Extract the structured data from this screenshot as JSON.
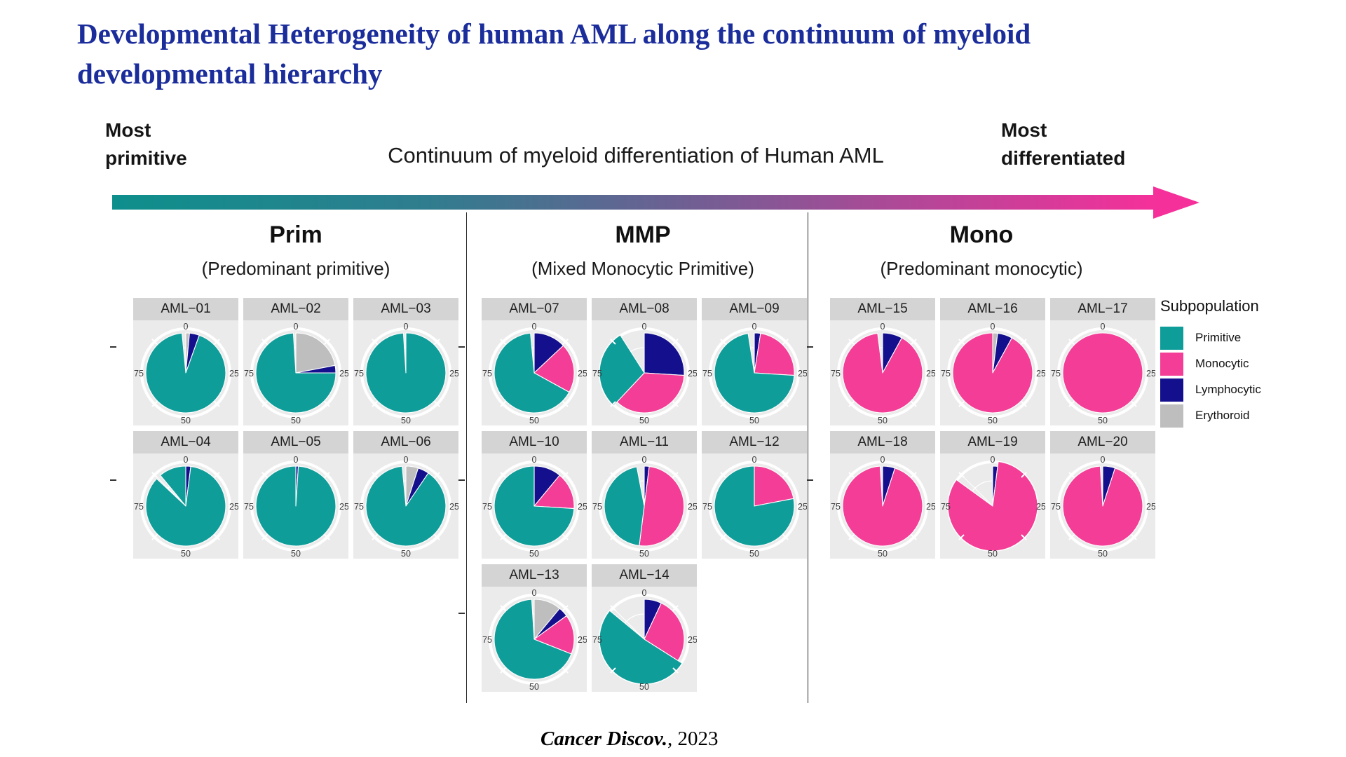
{
  "title": {
    "line1": "Developmental Heterogeneity of human AML along the continuum of myeloid",
    "line2": "developmental hierarchy"
  },
  "axis_labels": {
    "left_line1": "Most",
    "left_line2": "primitive",
    "center": "Continuum of myeloid differentiation of Human AML",
    "right_line1": "Most",
    "right_line2": "differentiated"
  },
  "legend": {
    "title": "Subpopulation",
    "entries": [
      {
        "key": "P",
        "label": "Primitive",
        "color": "#0F9D9A"
      },
      {
        "key": "M",
        "label": "Monocytic",
        "color": "#F43D96"
      },
      {
        "key": "L",
        "label": "Lymphocytic",
        "color": "#140F8C"
      },
      {
        "key": "E",
        "label": "Erythoroid",
        "color": "#BEBEBE"
      }
    ]
  },
  "citation": {
    "journal": "Cancer Discov.",
    "suffix": ", 2023"
  },
  "colors": {
    "title_blue": "#1B2D9B",
    "primitive": "#0F9D9A",
    "monocytic": "#F43D96",
    "lymphocytic": "#140F8C",
    "erythoroid": "#BEBEBE",
    "panel_strip": "#D4D4D4",
    "panel_bg": "#EBEBEB",
    "arrow_start": "#0D8F8C",
    "arrow_end": "#F5309B"
  },
  "chart_data": {
    "type": "pie",
    "unit": "percent of cells",
    "tick_labels": [
      "0",
      "25",
      "50",
      "75"
    ],
    "category_key": {
      "P": "Primitive",
      "M": "Monocytic",
      "L": "Lymphocytic",
      "E": "Erythoroid",
      "X": "empty"
    },
    "groups": [
      {
        "name": "Prim",
        "subtitle": "(Predominant primitive)",
        "rows": [
          [
            "AML-01",
            "AML-02",
            "AML-03"
          ],
          [
            "AML-04",
            "AML-05",
            "AML-06"
          ]
        ]
      },
      {
        "name": "MMP",
        "subtitle": "(Mixed Monocytic Primitive)",
        "rows": [
          [
            "AML-07",
            "AML-08",
            "AML-09"
          ],
          [
            "AML-10",
            "AML-11",
            "AML-12"
          ],
          [
            "AML-13",
            "AML-14"
          ]
        ]
      },
      {
        "name": "Mono",
        "subtitle": "(Predominant monocytic)",
        "rows": [
          [
            "AML-15",
            "AML-16",
            "AML-17"
          ],
          [
            "AML-18",
            "AML-19",
            "AML-20"
          ]
        ]
      }
    ],
    "samples": {
      "AML-01": {
        "label": "AML−01",
        "slices": [
          {
            "c": "E",
            "v": 1.5
          },
          {
            "c": "L",
            "v": 4
          },
          {
            "c": "P",
            "v": 93
          },
          {
            "c": "X",
            "v": 1.5
          }
        ]
      },
      "AML-02": {
        "label": "AML−02",
        "slices": [
          {
            "c": "E",
            "v": 22
          },
          {
            "c": "L",
            "v": 3
          },
          {
            "c": "P",
            "v": 74
          },
          {
            "c": "X",
            "v": 1
          }
        ]
      },
      "AML-03": {
        "label": "AML−03",
        "slices": [
          {
            "c": "P",
            "v": 99
          },
          {
            "c": "X",
            "v": 1
          }
        ]
      },
      "AML-04": {
        "label": "AML−04",
        "slices": [
          {
            "c": "L",
            "v": 2
          },
          {
            "c": "P",
            "v": 85
          },
          {
            "c": "X",
            "v": 2
          },
          {
            "c": "P",
            "v": 11
          }
        ]
      },
      "AML-05": {
        "label": "AML−05",
        "slices": [
          {
            "c": "L",
            "v": 1
          },
          {
            "c": "P",
            "v": 99
          }
        ]
      },
      "AML-06": {
        "label": "AML−06",
        "slices": [
          {
            "c": "E",
            "v": 5
          },
          {
            "c": "L",
            "v": 4.5
          },
          {
            "c": "P",
            "v": 89
          },
          {
            "c": "X",
            "v": 1.5
          }
        ]
      },
      "AML-07": {
        "label": "AML−07",
        "slices": [
          {
            "c": "L",
            "v": 13
          },
          {
            "c": "M",
            "v": 20
          },
          {
            "c": "P",
            "v": 65.5
          },
          {
            "c": "X",
            "v": 1.5
          }
        ]
      },
      "AML-08": {
        "label": "AML−08",
        "slices": [
          {
            "c": "L",
            "v": 26
          },
          {
            "c": "M",
            "v": 36
          },
          {
            "c": "P",
            "v": 29,
            "of": true
          },
          {
            "c": "X",
            "v": 9
          }
        ]
      },
      "AML-09": {
        "label": "AML−09",
        "slices": [
          {
            "c": "L",
            "v": 2.5
          },
          {
            "c": "M",
            "v": 23.5
          },
          {
            "c": "P",
            "v": 71.5
          },
          {
            "c": "X",
            "v": 2.5
          }
        ]
      },
      "AML-10": {
        "label": "AML−10",
        "slices": [
          {
            "c": "L",
            "v": 11
          },
          {
            "c": "M",
            "v": 15
          },
          {
            "c": "P",
            "v": 74
          }
        ]
      },
      "AML-11": {
        "label": "AML−11",
        "slices": [
          {
            "c": "L",
            "v": 2
          },
          {
            "c": "M",
            "v": 50
          },
          {
            "c": "P",
            "v": 45
          },
          {
            "c": "X",
            "v": 3
          }
        ]
      },
      "AML-12": {
        "label": "AML−12",
        "slices": [
          {
            "c": "M",
            "v": 22
          },
          {
            "c": "P",
            "v": 78
          }
        ]
      },
      "AML-13": {
        "label": "AML−13",
        "slices": [
          {
            "c": "E",
            "v": 11
          },
          {
            "c": "L",
            "v": 4
          },
          {
            "c": "M",
            "v": 16
          },
          {
            "c": "P",
            "v": 68
          },
          {
            "c": "X",
            "v": 1
          }
        ]
      },
      "AML-14": {
        "label": "AML−14",
        "slices": [
          {
            "c": "L",
            "v": 7
          },
          {
            "c": "M",
            "v": 27
          },
          {
            "c": "P",
            "v": 52,
            "of": true
          },
          {
            "c": "X",
            "v": 14
          }
        ]
      },
      "AML-15": {
        "label": "AML−15",
        "slices": [
          {
            "c": "L",
            "v": 8
          },
          {
            "c": "M",
            "v": 90
          },
          {
            "c": "X",
            "v": 2
          }
        ]
      },
      "AML-16": {
        "label": "AML−16",
        "slices": [
          {
            "c": "E",
            "v": 2
          },
          {
            "c": "L",
            "v": 6
          },
          {
            "c": "M",
            "v": 92
          }
        ]
      },
      "AML-17": {
        "label": "AML−17",
        "slices": [
          {
            "c": "M",
            "v": 100
          }
        ]
      },
      "AML-18": {
        "label": "AML−18",
        "slices": [
          {
            "c": "L",
            "v": 5
          },
          {
            "c": "M",
            "v": 94
          },
          {
            "c": "X",
            "v": 1
          }
        ]
      },
      "AML-19": {
        "label": "AML−19",
        "slices": [
          {
            "c": "L",
            "v": 2
          },
          {
            "c": "M",
            "v": 83,
            "of": true
          },
          {
            "c": "X",
            "v": 15
          }
        ]
      },
      "AML-20": {
        "label": "AML−20",
        "slices": [
          {
            "c": "L",
            "v": 5
          },
          {
            "c": "M",
            "v": 94
          },
          {
            "c": "X",
            "v": 1
          }
        ]
      }
    }
  }
}
